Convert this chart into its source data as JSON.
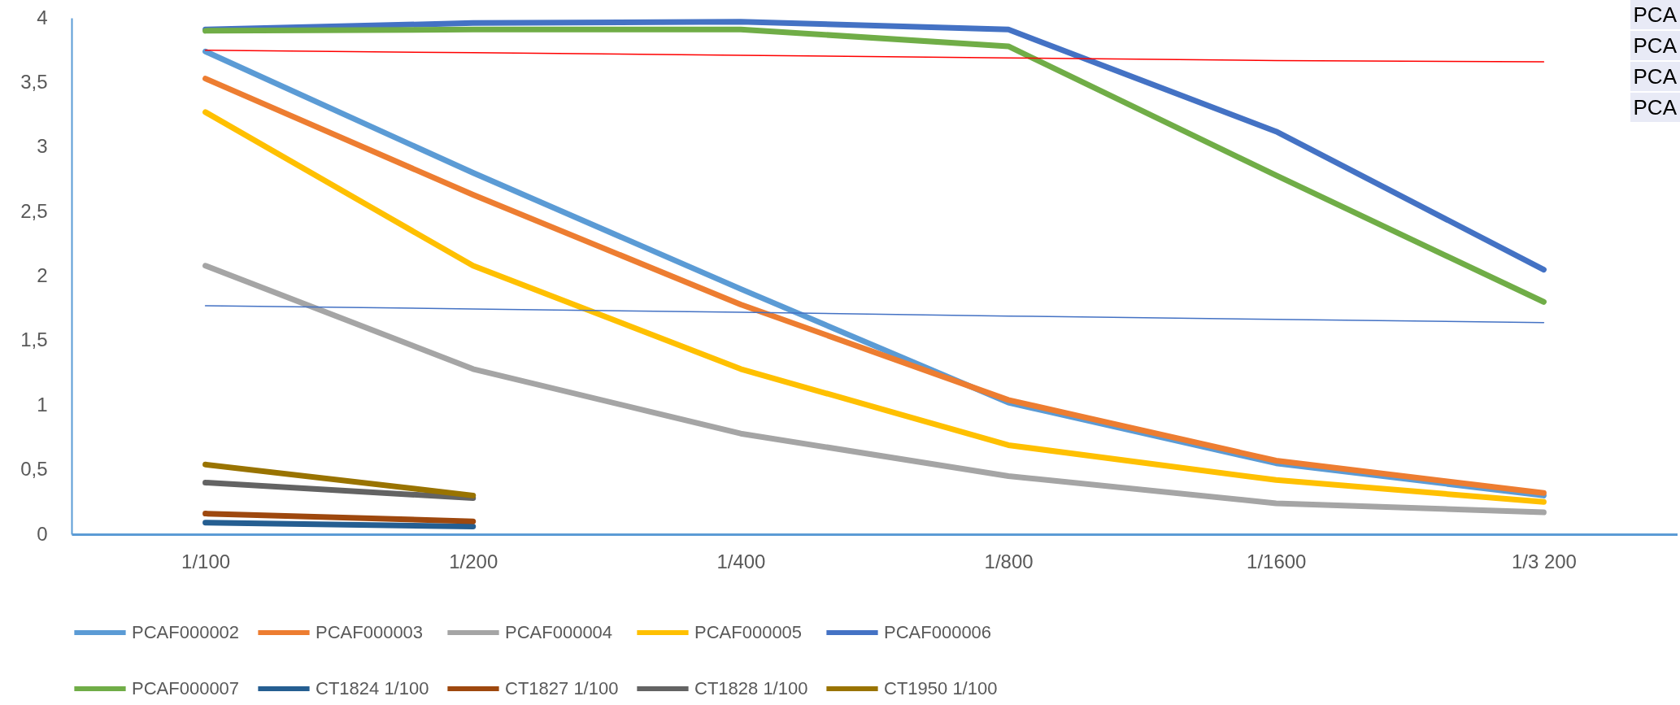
{
  "chart_data": {
    "type": "line",
    "categories": [
      "1/100",
      "1/200",
      "1/400",
      "1/800",
      "1/1600",
      "1/3 200"
    ],
    "ylim": [
      0,
      4
    ],
    "yticks": [
      0,
      {
        "value": 0.5,
        "label": "0,5"
      },
      1,
      {
        "value": 1.5,
        "label": "1,5"
      },
      2,
      {
        "value": 2.5,
        "label": "2,5"
      },
      3,
      {
        "value": 3.5,
        "label": "3,5"
      },
      4
    ],
    "grid": false,
    "legend": "bottom",
    "series": [
      {
        "name": "PCAF000002",
        "color": "#5b9bd5",
        "values": [
          3.74,
          2.8,
          1.9,
          1.02,
          0.55,
          0.3
        ]
      },
      {
        "name": "PCAF000003",
        "color": "#ed7d31",
        "values": [
          3.53,
          2.63,
          1.78,
          1.04,
          0.57,
          0.32
        ]
      },
      {
        "name": "PCAF000004",
        "color": "#a5a5a5",
        "values": [
          2.08,
          1.28,
          0.78,
          0.45,
          0.24,
          0.17
        ]
      },
      {
        "name": "PCAF000005",
        "color": "#ffc000",
        "values": [
          3.27,
          2.08,
          1.28,
          0.69,
          0.42,
          0.25
        ]
      },
      {
        "name": "PCAF000006",
        "color": "#4472c4",
        "values": [
          3.91,
          3.96,
          3.97,
          3.91,
          3.12,
          2.05
        ]
      },
      {
        "name": "PCAF000007",
        "color": "#70ad47",
        "values": [
          3.9,
          3.91,
          3.91,
          3.78,
          2.78,
          1.8
        ]
      },
      {
        "name": "CT1824 1/100",
        "color": "#255e91",
        "values": [
          0.09,
          0.06,
          null,
          null,
          null,
          null
        ]
      },
      {
        "name": "CT1827 1/100",
        "color": "#9e480e",
        "values": [
          0.16,
          0.1,
          null,
          null,
          null,
          null
        ]
      },
      {
        "name": "CT1828 1/100",
        "color": "#636363",
        "values": [
          0.4,
          0.28,
          null,
          null,
          null,
          null
        ]
      },
      {
        "name": "CT1950 1/100",
        "color": "#997300",
        "values": [
          0.54,
          0.3,
          null,
          null,
          null,
          null
        ]
      },
      {
        "color": "#ff0000",
        "values": [
          3.75,
          3.73,
          3.71,
          3.69,
          3.67,
          3.66
        ]
      },
      {
        "color": "#4472c4",
        "values": [
          1.77,
          1.745,
          1.72,
          1.69,
          1.665,
          1.64
        ]
      }
    ],
    "annotations": [
      "PCA",
      "PCA",
      "PCA",
      "PCA"
    ]
  }
}
